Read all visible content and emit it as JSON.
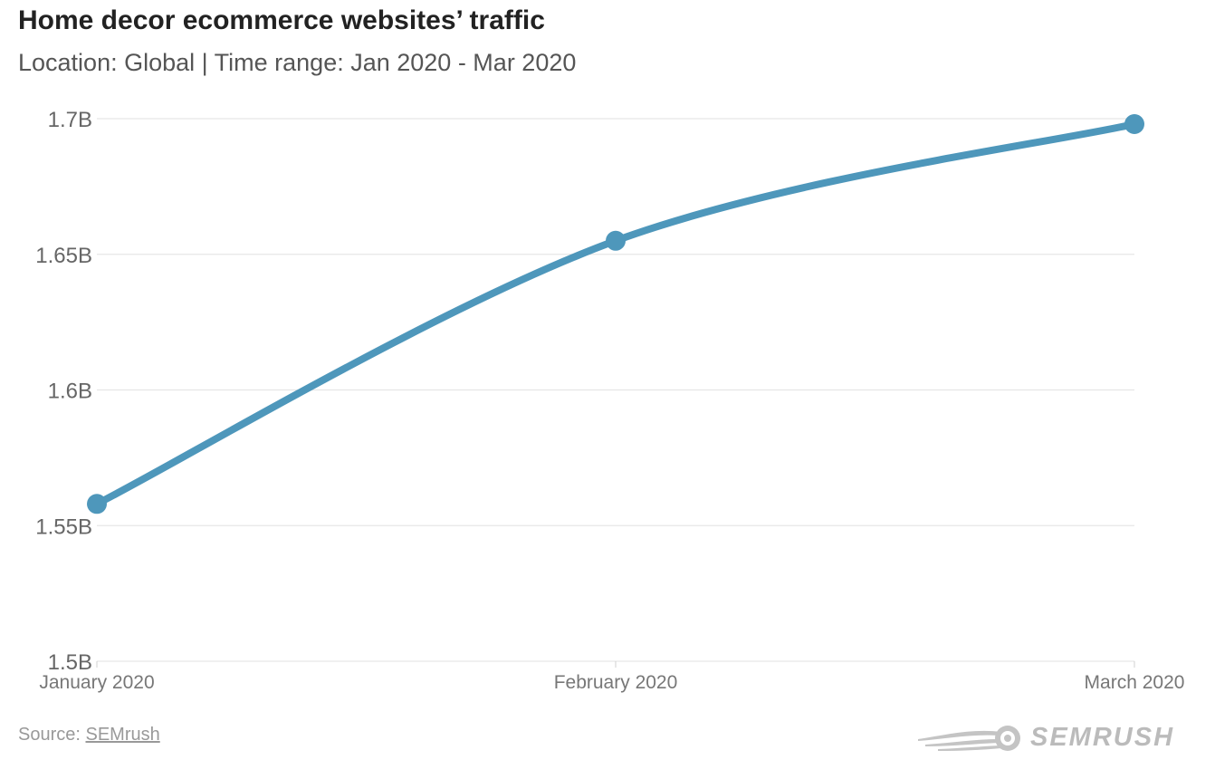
{
  "header": {
    "title": "Home decor ecommerce websites’ traffic",
    "subtitle": "Location: Global | Time range: Jan 2020 - Mar 2020"
  },
  "footer": {
    "source_prefix": "Source: ",
    "source_link": "SEMrush",
    "brand": "SEMRUSH"
  },
  "colors": {
    "line": "#4e97bb",
    "grid": "#e6e6e6",
    "axis_text": "#666666"
  },
  "chart_data": {
    "type": "line",
    "title": "Home decor ecommerce websites’ traffic",
    "subtitle": "Location: Global | Time range: Jan 2020 - Mar 2020",
    "categories": [
      "January 2020",
      "February 2020",
      "March 2020"
    ],
    "series": [
      {
        "values": [
          1.558,
          1.655,
          1.698
        ]
      }
    ],
    "unit": "B",
    "ylim": [
      1.5,
      1.7
    ],
    "yticks": [
      1.5,
      1.55,
      1.6,
      1.65,
      1.7
    ],
    "ytick_labels": [
      "1.5B",
      "1.55B",
      "1.6B",
      "1.65B",
      "1.7B"
    ],
    "xlabel": "",
    "ylabel": "",
    "grid": true,
    "legend": "none",
    "curve": "smooth"
  }
}
